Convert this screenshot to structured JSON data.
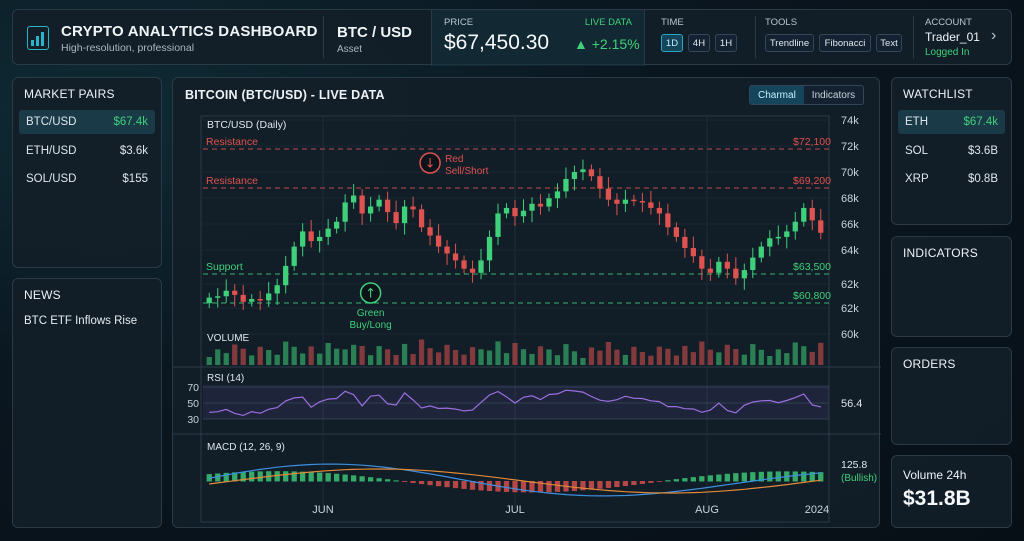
{
  "header": {
    "app_title": "CRYPTO ANALYTICS DASHBOARD",
    "app_subtitle": "High-resolution, professional",
    "pair": "BTC / USD",
    "pair_sub": "Asset",
    "price_label": "PRICE",
    "live_label": "LIVE DATA",
    "price": "$67,450.30",
    "change": "▲ +2.15%",
    "time_label": "TIME",
    "time_buttons": [
      "1D",
      "4H",
      "1H"
    ],
    "tools_label": "TOOLS",
    "tool_buttons": [
      "Trendline",
      "Fibonacci",
      "Text"
    ],
    "account_label": "ACCOUNT",
    "account_name": "Trader_01",
    "account_status": "Logged In"
  },
  "market_pairs": {
    "title": "MARKET PAIRS",
    "items": [
      {
        "name": "BTC/USD",
        "value": "$67.4k"
      },
      {
        "name": "ETH/USD",
        "value": "$3.6k"
      },
      {
        "name": "SOL/USD",
        "value": "$155"
      }
    ]
  },
  "news": {
    "title": "NEWS",
    "items": [
      "BTC ETF Inflows Rise"
    ]
  },
  "watchlist": {
    "title": "WATCHLIST",
    "items": [
      {
        "name": "ETH",
        "value": "$67.4k"
      },
      {
        "name": "SOL",
        "value": "$3.6B"
      },
      {
        "name": "XRP",
        "value": "$0.8B"
      }
    ]
  },
  "indicators_panel": {
    "title": "INDICATORS"
  },
  "orders_panel": {
    "title": "ORDERS"
  },
  "volume_panel": {
    "title": "Volume 24h",
    "value": "$31.8B"
  },
  "chart_panel": {
    "title": "BITCOIN (BTC/USD) - LIVE DATA",
    "tabs": [
      "Charmal",
      "Indicators"
    ]
  },
  "colors": {
    "up": "#3fd07a",
    "down": "#e0524f",
    "accent": "#2bb3c9",
    "rsi": "#9b6fe0"
  },
  "chart_data": {
    "type": "candlestick",
    "title": "BTC/USD (Daily)",
    "y_ticks": [
      "74k",
      "72k",
      "70k",
      "68k",
      "66k",
      "64k",
      "62k",
      "62k",
      "60k"
    ],
    "x_ticks": [
      "JUN",
      "JUL",
      "AUG",
      "2024"
    ],
    "levels": [
      {
        "label": "Resistance",
        "value_label": "$72,100",
        "kind": "resistance"
      },
      {
        "label": "Resistance",
        "value_label": "$69,200",
        "kind": "resistance"
      },
      {
        "label": "Support",
        "value_label": "$63,500",
        "kind": "support"
      },
      {
        "label": "",
        "value_label": "$60,800",
        "kind": "support"
      }
    ],
    "signals": [
      {
        "label": "Red",
        "label2": "Sell/Short",
        "kind": "sell",
        "index": 26
      },
      {
        "label": "Green",
        "label2": "Buy/Long",
        "kind": "buy",
        "index": 19
      }
    ],
    "closes": [
      61.5,
      61.6,
      62.0,
      61.7,
      61.2,
      61.4,
      61.3,
      61.8,
      62.4,
      63.8,
      65.2,
      66.3,
      65.6,
      65.9,
      66.5,
      67.0,
      68.4,
      68.9,
      67.6,
      68.1,
      68.6,
      67.7,
      66.9,
      68.1,
      67.9,
      66.6,
      66.0,
      65.2,
      64.7,
      64.2,
      63.6,
      63.3,
      64.2,
      65.9,
      67.6,
      68.0,
      67.4,
      67.8,
      68.3,
      68.1,
      68.7,
      69.2,
      70.1,
      70.6,
      70.8,
      70.3,
      69.4,
      68.6,
      68.3,
      68.6,
      68.5,
      68.4,
      68.0,
      67.6,
      66.6,
      65.9,
      65.1,
      64.5,
      63.6,
      63.3,
      64.1,
      63.6,
      62.9,
      63.5,
      64.4,
      65.2,
      65.8,
      65.9,
      66.3,
      67.0,
      68.0,
      67.1,
      66.2
    ],
    "volume_label": "VOLUME",
    "rsi": {
      "label": "RSI (14)",
      "ticks": [
        "70",
        "50",
        "30"
      ],
      "last": "56.4"
    },
    "macd": {
      "label": "MACD (12, 26, 9)",
      "last": "125.8",
      "last_note": "(Bullish)"
    }
  }
}
